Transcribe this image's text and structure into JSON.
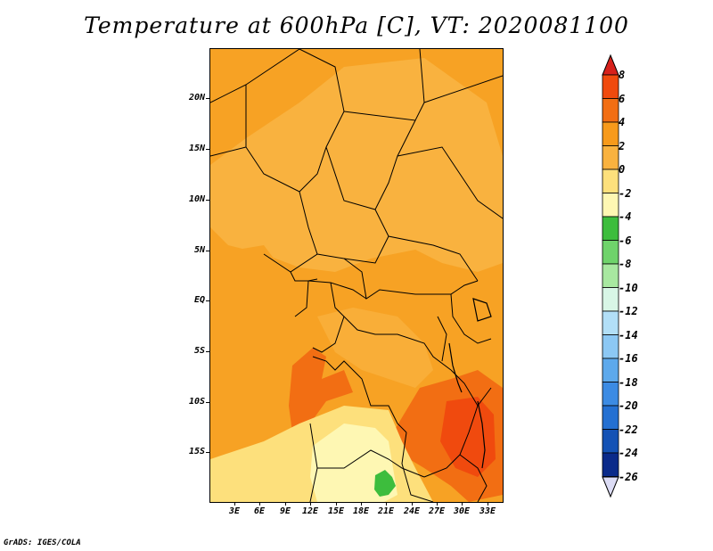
{
  "title": "Temperature at 600hPa [C], VT: 2020081100",
  "credit": "GrADS: IGES/COLA",
  "map": {
    "lat_labels": [
      "20N",
      "15N",
      "10N",
      "5N",
      "EQ",
      "5S",
      "10S",
      "15S"
    ],
    "lon_labels": [
      "3E",
      "6E",
      "9E",
      "12E",
      "15E",
      "18E",
      "21E",
      "24E",
      "27E",
      "30E",
      "33E"
    ]
  },
  "colorbar": {
    "labels": [
      "8",
      "6",
      "4",
      "2",
      "0",
      "-2",
      "-4",
      "-6",
      "-8",
      "-10",
      "-12",
      "-14",
      "-16",
      "-18",
      "-20",
      "-22",
      "-24",
      "-26"
    ],
    "colors": {
      "above_8": "#d7211b",
      "6_8": "#f04a0e",
      "4_6": "#f26e13",
      "2_4": "#f79a1b",
      "0_2": "#f9b23f",
      "m2_0": "#fde07c",
      "m4_m2": "#fef7b3",
      "m6_m4": "#3dbd3d",
      "m8_m6": "#6fd36b",
      "m10_m8": "#a8e8a0",
      "m12_m10": "#d8f6e6",
      "m14_m12": "#b2dff7",
      "m16_m14": "#8cc8f4",
      "m18_m16": "#5da9ec",
      "m20_m18": "#3c8be3",
      "m22_m20": "#2470d2",
      "m24_m22": "#1452b5",
      "m26_m24": "#0a2a8a",
      "below_m26": "#dcdcf5"
    }
  },
  "chart_data": {
    "type": "heatmap",
    "title": "Temperature at 600hPa [C], VT: 2020081100",
    "variable": "Temperature at 600hPa",
    "units": "C",
    "valid_time": "2020081100",
    "lon_range": [
      1,
      35
    ],
    "lat_range": [
      -20,
      24
    ],
    "contour_levels": [
      -26,
      -24,
      -22,
      -20,
      -18,
      -16,
      -14,
      -12,
      -10,
      -8,
      -6,
      -4,
      -2,
      0,
      2,
      4,
      6,
      8
    ]
  }
}
